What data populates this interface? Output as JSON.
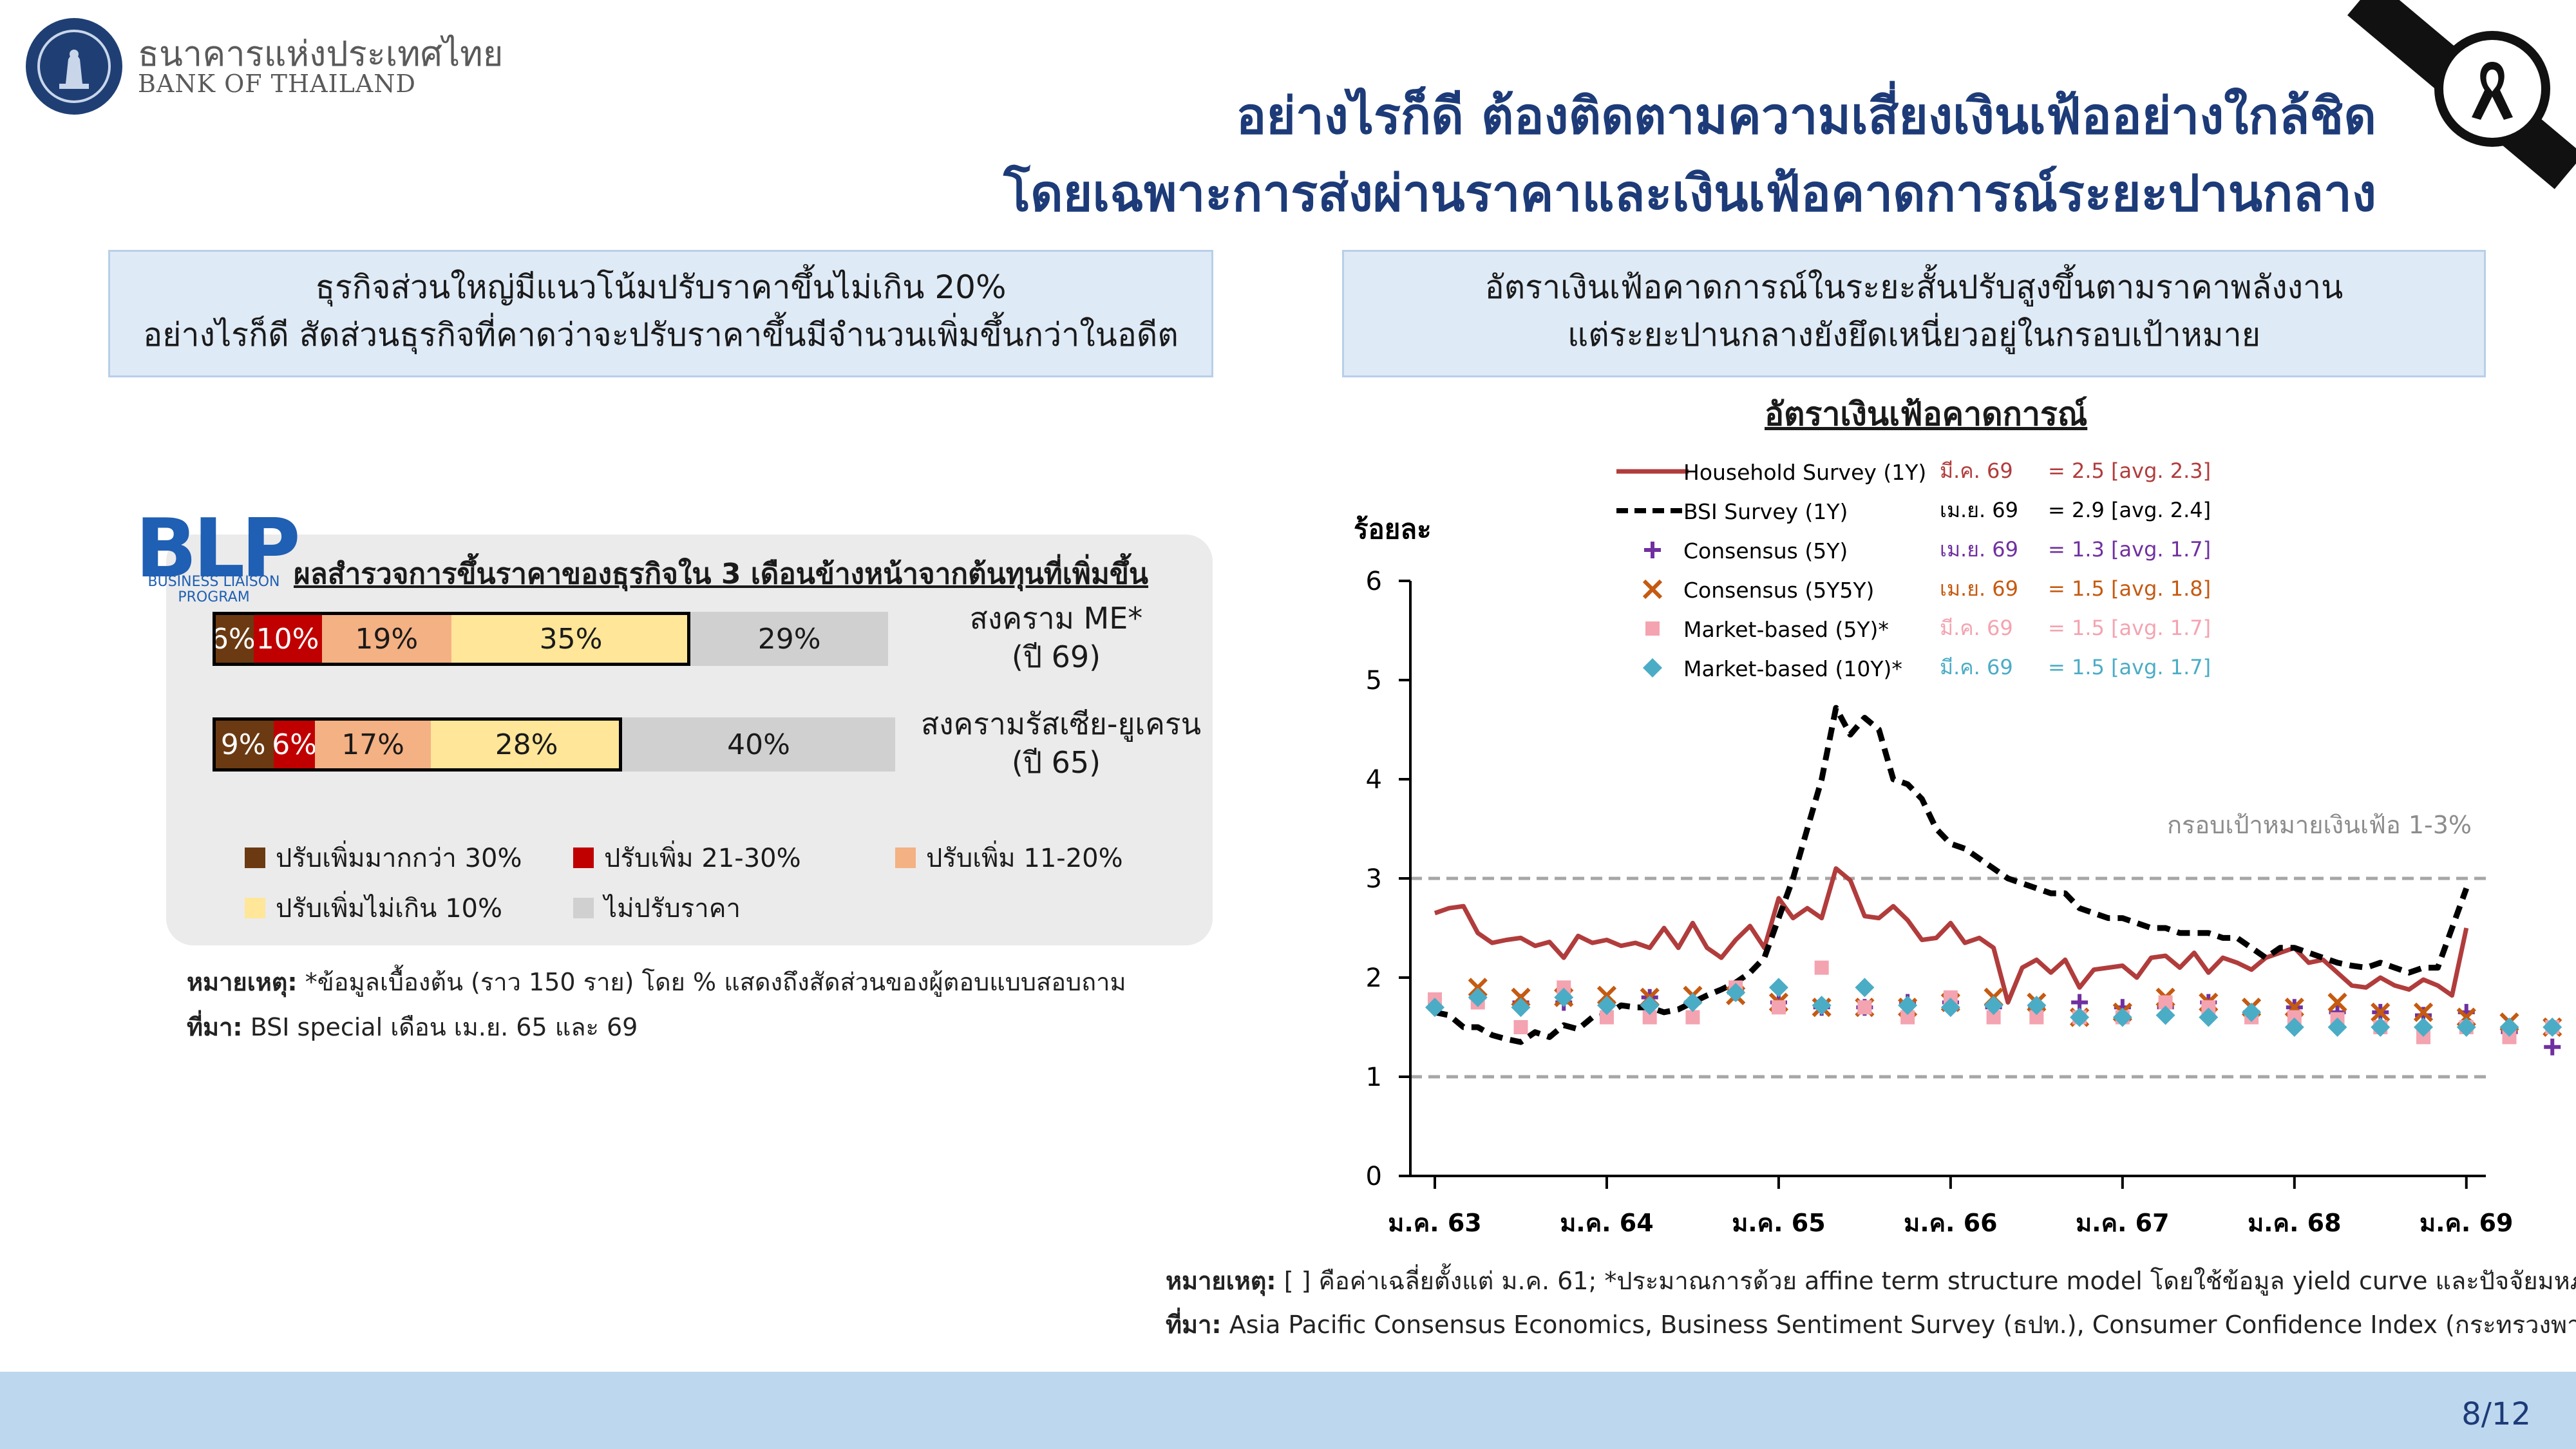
{
  "header": {
    "org_name_th": "ธนาคารแห่งประเทศไทย",
    "org_name_en": "BANK OF THAILAND",
    "title_line1": "อย่างไรก็ดี ต้องติดตามความเสี่ยงเงินเฟ้ออย่างใกล้ชิด",
    "title_line2": "โดยเฉพาะการส่งผ่านราคาและเงินเฟ้อคาดการณ์ระยะปานกลาง"
  },
  "left": {
    "box_line1": "ธุรกิจส่วนใหญ่มีแนวโน้มปรับราคาขึ้นไม่เกิน 20%",
    "box_line2": "อย่างไรก็ดี สัดส่วนธุรกิจที่คาดว่าจะปรับราคาขึ้นมีจำนวนเพิ่มขึ้นกว่าในอดีต",
    "blp_logo": "BLP",
    "blp_sub_line1": "BUSINESS LIAISON",
    "blp_sub_line2": "PROGRAM",
    "note_label": "หมายเหตุ:",
    "note_text": " *ข้อมูลเบื้องต้น (ราว 150 ราย) โดย % แสดงถึงสัดส่วนของผู้ตอบแบบสอบถาม",
    "source_label": "ที่มา:",
    "source_text": " BSI special เดือน เม.ย. 65 และ 69"
  },
  "right": {
    "box_line1": "อัตราเงินเฟ้อคาดการณ์ในระยะสั้นปรับสูงขึ้นตามราคาพลังงาน",
    "box_line2": "แต่ระยะปานกลางยังยึดเหนี่ยวอยู่ในกรอบเป้าหมาย",
    "note_label": "หมายเหตุ:",
    "note_text": " [ ] คือค่าเฉลี่ยตั้งแต่ ม.ค. 61; *ประมาณการด้วย affine term structure model โดยใช้ข้อมูล yield curve และปัจจัยมหภาค",
    "source_label": "ที่มา:",
    "source_text": " Asia Pacific Consensus Economics, Business Sentiment Survey (ธปท.), Consumer Confidence Index (กระทรวงพาณิชย์)"
  },
  "page_number": "8/12",
  "chart_data": [
    {
      "type": "bar",
      "orientation": "horizontal-stacked",
      "title": "ผลสำรวจการขึ้นราคาของธุรกิจใน 3 เดือนข้างหน้าจากต้นทุนที่เพิ่มขึ้น",
      "categories": [
        "สงคราม ME* (ปี 69)",
        "สงครามรัสเซีย-ยูเครน (ปี 65)"
      ],
      "category_lines": [
        [
          "สงคราม ME*",
          "(ปี 69)"
        ],
        [
          "สงครามรัสเซีย-ยูเครน",
          "(ปี 65)"
        ]
      ],
      "series": [
        {
          "name": "ปรับเพิ่มมากกว่า 30%",
          "values": [
            6,
            9
          ],
          "color": "#6b3a12"
        },
        {
          "name": "ปรับเพิ่ม 21-30%",
          "values": [
            10,
            6
          ],
          "color": "#c00000"
        },
        {
          "name": "ปรับเพิ่ม 11-20%",
          "values": [
            19,
            17
          ],
          "color": "#f4b183"
        },
        {
          "name": "ปรับเพิ่มไม่เกิน 10%",
          "values": [
            35,
            28
          ],
          "color": "#ffe699"
        },
        {
          "name": "ไม่ปรับราคา",
          "values": [
            29,
            40
          ],
          "color": "#d0d0d0"
        }
      ],
      "value_labels": [
        [
          "6%",
          "10%",
          "19%",
          "35%",
          "29%"
        ],
        [
          "9%",
          "6%",
          "17%",
          "28%",
          "40%"
        ]
      ],
      "label_colors": [
        "#ffffff",
        "#ffffff",
        "#1a1a1a",
        "#1a1a1a",
        "#1a1a1a"
      ],
      "highlight_outline": "#000000",
      "legend_placement": "bottom"
    },
    {
      "type": "line",
      "title": "อัตราเงินเฟ้อคาดการณ์",
      "ylabel": "ร้อยละ",
      "ylim": [
        0,
        6
      ],
      "yticks": [
        0,
        1,
        2,
        3,
        4,
        5,
        6
      ],
      "xlim": [
        "ม.ค. 63",
        "ก.พ. 69"
      ],
      "xticks": [
        "ม.ค. 63",
        "ม.ค. 64",
        "ม.ค. 65",
        "ม.ค. 66",
        "ม.ค. 67",
        "ม.ค. 68",
        "ม.ค. 69"
      ],
      "target_band": [
        1,
        3
      ],
      "target_band_label": "กรอบเป้าหมายเงินเฟ้อ 1-3%",
      "legend_placement": "top",
      "legend": [
        {
          "name": "Household Survey (1Y)",
          "date": "มี.ค. 69",
          "value": "= 2.5 [avg. 2.3]",
          "color": "#b13c3c"
        },
        {
          "name": "BSI Survey (1Y)",
          "date": "เม.ย. 69",
          "value": "= 2.9 [avg. 2.4]",
          "color": "#000000"
        },
        {
          "name": "Consensus (5Y)",
          "date": "เม.ย. 69",
          "value": "= 1.3 [avg. 1.7]",
          "color": "#7030a0"
        },
        {
          "name": "Consensus (5Y5Y)",
          "date": "เม.ย. 69",
          "value": "= 1.5 [avg. 1.8]",
          "color": "#c55a11"
        },
        {
          "name": "Market-based (5Y)*",
          "date": "มี.ค. 69",
          "value": "= 1.5 [avg. 1.7]",
          "color": "#f4a3b0"
        },
        {
          "name": "Market-based (10Y)*",
          "date": "มี.ค. 69",
          "value": "= 1.5 [avg. 1.7]",
          "color": "#4bacc6"
        }
      ],
      "series": [
        {
          "name": "Household Survey (1Y)",
          "style": "line",
          "color": "#b13c3c",
          "x_start": "ม.ค. 63",
          "freq": "monthly",
          "values": [
            2.65,
            2.7,
            2.72,
            2.45,
            2.35,
            2.38,
            2.4,
            2.32,
            2.36,
            2.2,
            2.42,
            2.35,
            2.38,
            2.32,
            2.35,
            2.3,
            2.5,
            2.3,
            2.55,
            2.3,
            2.2,
            2.38,
            2.52,
            2.3,
            2.8,
            2.6,
            2.7,
            2.6,
            3.1,
            2.98,
            2.62,
            2.6,
            2.72,
            2.58,
            2.38,
            2.4,
            2.55,
            2.35,
            2.4,
            2.3,
            1.75,
            2.1,
            2.18,
            2.05,
            2.18,
            1.9,
            2.08,
            2.1,
            2.12,
            2.0,
            2.2,
            2.22,
            2.1,
            2.25,
            2.05,
            2.2,
            2.15,
            2.08,
            2.2,
            2.25,
            2.3,
            2.15,
            2.18,
            2.05,
            1.92,
            1.9,
            2.0,
            1.92,
            1.88,
            1.98,
            1.92,
            1.82,
            2.5
          ]
        },
        {
          "name": "BSI Survey (1Y)",
          "style": "dashed",
          "color": "#000000",
          "x_start": "ม.ค. 63",
          "freq": "monthly",
          "values": [
            1.65,
            1.62,
            1.5,
            1.5,
            1.42,
            1.38,
            1.35,
            1.45,
            1.4,
            1.52,
            1.48,
            1.6,
            1.62,
            1.72,
            1.7,
            1.7,
            1.65,
            1.68,
            1.75,
            1.82,
            1.88,
            1.95,
            2.05,
            2.2,
            2.6,
            3.0,
            3.5,
            4.0,
            4.72,
            4.45,
            4.62,
            4.5,
            4.0,
            3.95,
            3.8,
            3.5,
            3.35,
            3.3,
            3.2,
            3.1,
            3.0,
            2.95,
            2.9,
            2.85,
            2.85,
            2.7,
            2.65,
            2.6,
            2.6,
            2.55,
            2.5,
            2.5,
            2.45,
            2.45,
            2.45,
            2.4,
            2.4,
            2.3,
            2.2,
            2.3,
            2.3,
            2.25,
            2.2,
            2.15,
            2.12,
            2.1,
            2.15,
            2.1,
            2.05,
            2.1,
            2.1,
            2.5,
            2.9
          ]
        },
        {
          "name": "Consensus (5Y)",
          "style": "plus",
          "color": "#7030a0",
          "x_start": "ม.ค. 63",
          "freq": "quarterly",
          "values": [
            null,
            1.8,
            1.75,
            1.75,
            1.75,
            1.8,
            1.75,
            1.85,
            1.75,
            1.7,
            1.7,
            1.75,
            1.75,
            1.7,
            1.7,
            1.75,
            1.7,
            1.7,
            1.75,
            1.65,
            1.7,
            1.65,
            1.65,
            1.62,
            1.65,
            1.45,
            1.3,
            1.3
          ]
        },
        {
          "name": "Consensus (5Y5Y)",
          "style": "cross",
          "color": "#c55a11",
          "x_start": "ม.ค. 63",
          "freq": "quarterly",
          "values": [
            null,
            1.9,
            1.8,
            1.8,
            1.82,
            1.8,
            1.82,
            1.82,
            1.75,
            1.7,
            1.7,
            1.7,
            1.75,
            1.8,
            1.75,
            1.6,
            1.65,
            1.8,
            1.75,
            1.7,
            1.7,
            1.75,
            1.65,
            1.65,
            1.6,
            1.55,
            1.5,
            1.5
          ]
        },
        {
          "name": "Market-based (5Y)*",
          "style": "square",
          "color": "#f4a3b0",
          "x_start": "ม.ค. 63",
          "freq": "quarterly",
          "values": [
            1.78,
            1.75,
            1.5,
            1.9,
            1.6,
            1.6,
            1.6,
            1.9,
            1.7,
            2.1,
            1.7,
            1.6,
            1.8,
            1.6,
            1.6,
            1.6,
            1.6,
            1.75,
            1.7,
            1.6,
            1.6,
            1.58,
            1.5,
            1.4,
            1.5,
            1.4,
            1.5,
            1.5
          ]
        },
        {
          "name": "Market-based (10Y)*",
          "style": "diamond",
          "color": "#4bacc6",
          "x_start": "ม.ค. 63",
          "freq": "quarterly",
          "values": [
            1.7,
            1.8,
            1.7,
            1.8,
            1.72,
            1.72,
            1.75,
            1.85,
            1.9,
            1.72,
            1.9,
            1.72,
            1.7,
            1.72,
            1.72,
            1.6,
            1.6,
            1.62,
            1.6,
            1.65,
            1.5,
            1.5,
            1.5,
            1.5,
            1.5,
            1.5,
            1.5,
            1.5
          ]
        }
      ]
    }
  ]
}
